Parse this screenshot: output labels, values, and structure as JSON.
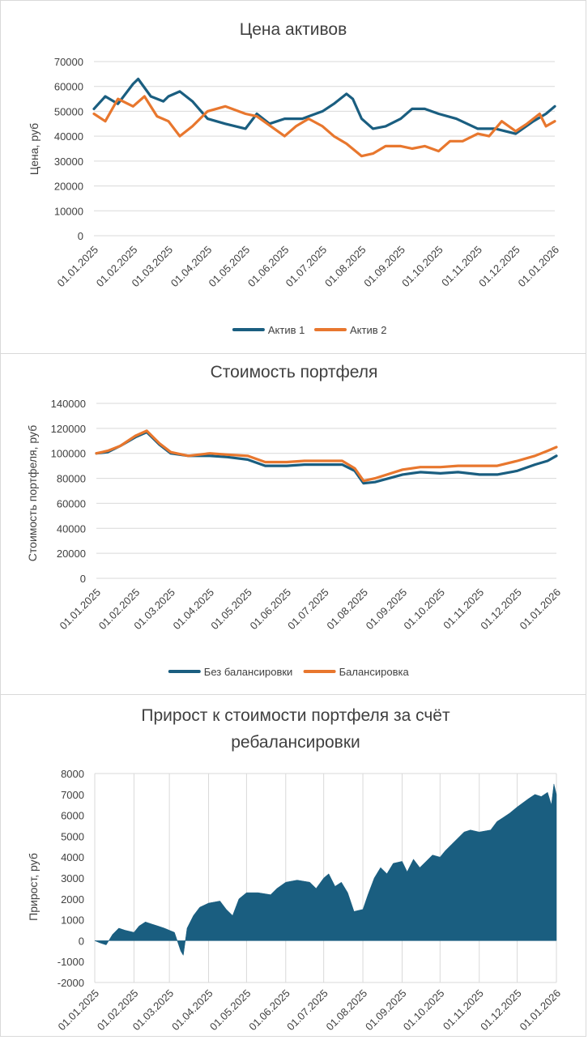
{
  "colors": {
    "series1": "#1a5e80",
    "series2": "#e8772e",
    "grid": "#d9d9d9",
    "text": "#404040",
    "bar": "#1a5e80"
  },
  "chart_data": [
    {
      "type": "line",
      "title": "Цена активов",
      "ylabel": "Цена, руб",
      "ylim": [
        0,
        70000
      ],
      "yticks": [
        "0",
        "10000",
        "20000",
        "30000",
        "40000",
        "50000",
        "60000",
        "70000"
      ],
      "xticks": [
        "01.01.2025",
        "01.02.2025",
        "01.03.2025",
        "01.04.2025",
        "01.05.2025",
        "01.06.2025",
        "01.07.2025",
        "01.08.2025",
        "01.09.2025",
        "01.10.2025",
        "01.11.2025",
        "01.12.2025",
        "01.01.2026"
      ],
      "x_range": [
        "01.01.2025",
        "01.01.2026"
      ],
      "grid": "horizontal",
      "legend": "bottom",
      "series": [
        {
          "name": "Актив 1",
          "color": "#1a5e80",
          "points": [
            [
              "01.01.2025",
              51000
            ],
            [
              "10.01.2025",
              56000
            ],
            [
              "20.01.2025",
              53000
            ],
            [
              "01.02.2025",
              61000
            ],
            [
              "05.02.2025",
              63000
            ],
            [
              "15.02.2025",
              56000
            ],
            [
              "25.02.2025",
              54000
            ],
            [
              "01.03.2025",
              56000
            ],
            [
              "10.03.2025",
              58000
            ],
            [
              "20.03.2025",
              54000
            ],
            [
              "01.04.2025",
              47000
            ],
            [
              "15.04.2025",
              45000
            ],
            [
              "01.05.2025",
              43000
            ],
            [
              "10.05.2025",
              49000
            ],
            [
              "20.05.2025",
              45000
            ],
            [
              "01.06.2025",
              47000
            ],
            [
              "15.06.2025",
              47000
            ],
            [
              "01.07.2025",
              50000
            ],
            [
              "10.07.2025",
              53000
            ],
            [
              "20.07.2025",
              57000
            ],
            [
              "25.07.2025",
              55000
            ],
            [
              "01.08.2025",
              47000
            ],
            [
              "10.08.2025",
              43000
            ],
            [
              "20.08.2025",
              44000
            ],
            [
              "01.09.2025",
              47000
            ],
            [
              "10.09.2025",
              51000
            ],
            [
              "20.09.2025",
              51000
            ],
            [
              "01.10.2025",
              49000
            ],
            [
              "15.10.2025",
              47000
            ],
            [
              "01.11.2025",
              43000
            ],
            [
              "15.11.2025",
              43000
            ],
            [
              "01.12.2025",
              41000
            ],
            [
              "15.12.2025",
              46000
            ],
            [
              "25.12.2025",
              49000
            ],
            [
              "01.01.2026",
              52000
            ]
          ]
        },
        {
          "name": "Актив 2",
          "color": "#e8772e",
          "points": [
            [
              "01.01.2025",
              49000
            ],
            [
              "10.01.2025",
              46000
            ],
            [
              "20.01.2025",
              55000
            ],
            [
              "01.02.2025",
              52000
            ],
            [
              "10.02.2025",
              56000
            ],
            [
              "20.02.2025",
              48000
            ],
            [
              "01.03.2025",
              46000
            ],
            [
              "10.03.2025",
              40000
            ],
            [
              "20.03.2025",
              44000
            ],
            [
              "01.04.2025",
              50000
            ],
            [
              "15.04.2025",
              52000
            ],
            [
              "01.05.2025",
              49000
            ],
            [
              "10.05.2025",
              48000
            ],
            [
              "01.06.2025",
              40000
            ],
            [
              "10.06.2025",
              44000
            ],
            [
              "20.06.2025",
              47000
            ],
            [
              "01.07.2025",
              44000
            ],
            [
              "10.07.2025",
              40000
            ],
            [
              "20.07.2025",
              37000
            ],
            [
              "01.08.2025",
              32000
            ],
            [
              "10.08.2025",
              33000
            ],
            [
              "20.08.2025",
              36000
            ],
            [
              "01.09.2025",
              36000
            ],
            [
              "10.09.2025",
              35000
            ],
            [
              "20.09.2025",
              36000
            ],
            [
              "01.10.2025",
              34000
            ],
            [
              "10.10.2025",
              38000
            ],
            [
              "20.10.2025",
              38000
            ],
            [
              "01.11.2025",
              41000
            ],
            [
              "10.11.2025",
              40000
            ],
            [
              "20.11.2025",
              46000
            ],
            [
              "01.12.2025",
              42000
            ],
            [
              "10.12.2025",
              45000
            ],
            [
              "20.12.2025",
              49000
            ],
            [
              "25.12.2025",
              44000
            ],
            [
              "01.01.2026",
              46000
            ]
          ]
        }
      ]
    },
    {
      "type": "line",
      "title": "Стоимость портфеля",
      "ylabel": "Стоимость портфеля, руб",
      "ylim": [
        0,
        140000
      ],
      "yticks": [
        "0",
        "20000",
        "40000",
        "60000",
        "80000",
        "100000",
        "120000",
        "140000"
      ],
      "xticks": [
        "01.01.2025",
        "01.02.2025",
        "01.03.2025",
        "01.04.2025",
        "01.05.2025",
        "01.06.2025",
        "01.07.2025",
        "01.08.2025",
        "01.09.2025",
        "01.10.2025",
        "01.11.2025",
        "01.12.2025",
        "01.01.2026"
      ],
      "x_range": [
        "01.01.2025",
        "01.01.2026"
      ],
      "grid": "horizontal",
      "legend": "bottom",
      "series": [
        {
          "name": "Без балансировки",
          "color": "#1a5e80",
          "points": [
            [
              "01.01.2025",
              100000
            ],
            [
              "10.01.2025",
              101000
            ],
            [
              "20.01.2025",
              106000
            ],
            [
              "01.02.2025",
              113000
            ],
            [
              "10.02.2025",
              117000
            ],
            [
              "20.02.2025",
              107000
            ],
            [
              "01.03.2025",
              100000
            ],
            [
              "15.03.2025",
              98000
            ],
            [
              "01.04.2025",
              98000
            ],
            [
              "15.04.2025",
              97000
            ],
            [
              "01.05.2025",
              95000
            ],
            [
              "15.05.2025",
              90000
            ],
            [
              "01.06.2025",
              90000
            ],
            [
              "15.06.2025",
              91000
            ],
            [
              "01.07.2025",
              91000
            ],
            [
              "15.07.2025",
              91000
            ],
            [
              "25.07.2025",
              86000
            ],
            [
              "01.08.2025",
              76000
            ],
            [
              "10.08.2025",
              77000
            ],
            [
              "01.09.2025",
              83000
            ],
            [
              "15.09.2025",
              85000
            ],
            [
              "01.10.2025",
              84000
            ],
            [
              "15.10.2025",
              85000
            ],
            [
              "01.11.2025",
              83000
            ],
            [
              "15.11.2025",
              83000
            ],
            [
              "01.12.2025",
              86000
            ],
            [
              "15.12.2025",
              91000
            ],
            [
              "25.12.2025",
              94000
            ],
            [
              "01.01.2026",
              98000
            ]
          ]
        },
        {
          "name": "Балансировка",
          "color": "#e8772e",
          "points": [
            [
              "01.01.2025",
              100000
            ],
            [
              "10.01.2025",
              102000
            ],
            [
              "20.01.2025",
              106000
            ],
            [
              "01.02.2025",
              114000
            ],
            [
              "10.02.2025",
              118000
            ],
            [
              "20.02.2025",
              108000
            ],
            [
              "01.03.2025",
              101000
            ],
            [
              "15.03.2025",
              98000
            ],
            [
              "01.04.2025",
              100000
            ],
            [
              "15.04.2025",
              99000
            ],
            [
              "01.05.2025",
              98000
            ],
            [
              "15.05.2025",
              93000
            ],
            [
              "01.06.2025",
              93000
            ],
            [
              "15.06.2025",
              94000
            ],
            [
              "01.07.2025",
              94000
            ],
            [
              "15.07.2025",
              94000
            ],
            [
              "25.07.2025",
              88000
            ],
            [
              "01.08.2025",
              78000
            ],
            [
              "10.08.2025",
              80000
            ],
            [
              "01.09.2025",
              87000
            ],
            [
              "15.09.2025",
              89000
            ],
            [
              "01.10.2025",
              89000
            ],
            [
              "15.10.2025",
              90000
            ],
            [
              "01.11.2025",
              90000
            ],
            [
              "15.11.2025",
              90000
            ],
            [
              "01.12.2025",
              94000
            ],
            [
              "15.12.2025",
              98000
            ],
            [
              "25.12.2025",
              102000
            ],
            [
              "01.01.2026",
              105000
            ]
          ]
        }
      ]
    },
    {
      "type": "area",
      "title": "Прирост к стоимости портфеля за счёт ребалансировки",
      "title_lines": [
        "Прирост к стоимости портфеля за счёт",
        "ребалансировки"
      ],
      "ylabel": "Прирост, руб",
      "ylim": [
        -2000,
        8000
      ],
      "yticks": [
        "-2000",
        "-1000",
        "0",
        "1000",
        "2000",
        "3000",
        "4000",
        "5000",
        "6000",
        "7000",
        "8000"
      ],
      "xticks": [
        "01.01.2025",
        "01.02.2025",
        "01.03.2025",
        "01.04.2025",
        "01.05.2025",
        "01.06.2025",
        "01.07.2025",
        "01.08.2025",
        "01.09.2025",
        "01.10.2025",
        "01.11.2025",
        "01.12.2025",
        "01.01.2026"
      ],
      "x_range": [
        "01.01.2025",
        "01.01.2026"
      ],
      "grid": "vertical",
      "series": [
        {
          "name": "",
          "color": "#1a5e80",
          "points": [
            [
              "01.01.2025",
              0
            ],
            [
              "05.01.2025",
              -100
            ],
            [
              "10.01.2025",
              -200
            ],
            [
              "15.01.2025",
              300
            ],
            [
              "20.01.2025",
              600
            ],
            [
              "25.01.2025",
              500
            ],
            [
              "01.02.2025",
              400
            ],
            [
              "05.02.2025",
              700
            ],
            [
              "10.02.2025",
              900
            ],
            [
              "15.02.2025",
              800
            ],
            [
              "20.02.2025",
              700
            ],
            [
              "25.02.2025",
              600
            ],
            [
              "01.03.2025",
              500
            ],
            [
              "05.03.2025",
              400
            ],
            [
              "10.03.2025",
              -500
            ],
            [
              "12.03.2025",
              -700
            ],
            [
              "15.03.2025",
              600
            ],
            [
              "20.03.2025",
              1200
            ],
            [
              "25.03.2025",
              1600
            ],
            [
              "01.04.2025",
              1800
            ],
            [
              "10.04.2025",
              1900
            ],
            [
              "15.04.2025",
              1500
            ],
            [
              "20.04.2025",
              1200
            ],
            [
              "25.04.2025",
              2000
            ],
            [
              "01.05.2025",
              2300
            ],
            [
              "10.05.2025",
              2300
            ],
            [
              "20.05.2025",
              2200
            ],
            [
              "25.05.2025",
              2500
            ],
            [
              "01.06.2025",
              2800
            ],
            [
              "10.06.2025",
              2900
            ],
            [
              "20.06.2025",
              2800
            ],
            [
              "25.06.2025",
              2500
            ],
            [
              "01.07.2025",
              3000
            ],
            [
              "05.07.2025",
              3200
            ],
            [
              "10.07.2025",
              2600
            ],
            [
              "15.07.2025",
              2800
            ],
            [
              "20.07.2025",
              2300
            ],
            [
              "25.07.2025",
              1400
            ],
            [
              "01.08.2025",
              1500
            ],
            [
              "05.08.2025",
              2200
            ],
            [
              "10.08.2025",
              3000
            ],
            [
              "15.08.2025",
              3500
            ],
            [
              "20.08.2025",
              3200
            ],
            [
              "25.08.2025",
              3700
            ],
            [
              "01.09.2025",
              3800
            ],
            [
              "05.09.2025",
              3300
            ],
            [
              "10.09.2025",
              3900
            ],
            [
              "15.09.2025",
              3500
            ],
            [
              "20.09.2025",
              3800
            ],
            [
              "25.09.2025",
              4100
            ],
            [
              "01.10.2025",
              4000
            ],
            [
              "05.10.2025",
              4300
            ],
            [
              "10.10.2025",
              4600
            ],
            [
              "15.10.2025",
              4900
            ],
            [
              "20.10.2025",
              5200
            ],
            [
              "25.10.2025",
              5300
            ],
            [
              "01.11.2025",
              5200
            ],
            [
              "10.11.2025",
              5300
            ],
            [
              "15.11.2025",
              5700
            ],
            [
              "20.11.2025",
              5900
            ],
            [
              "25.11.2025",
              6100
            ],
            [
              "01.12.2025",
              6400
            ],
            [
              "10.12.2025",
              6800
            ],
            [
              "15.12.2025",
              7000
            ],
            [
              "20.12.2025",
              6900
            ],
            [
              "25.12.2025",
              7100
            ],
            [
              "28.12.2025",
              6500
            ],
            [
              "30.12.2025",
              7500
            ],
            [
              "01.01.2026",
              7000
            ]
          ]
        }
      ]
    }
  ]
}
